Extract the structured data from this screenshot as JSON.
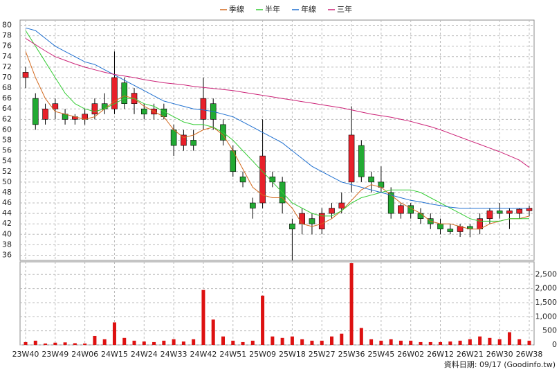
{
  "chart_data": {
    "type": "candlestick",
    "categories": [
      "23W40",
      null,
      null,
      "23W49",
      null,
      null,
      "24W06",
      null,
      null,
      "24W15",
      null,
      null,
      "24W24",
      null,
      null,
      "24W33",
      null,
      null,
      "24W42",
      null,
      null,
      "24W51",
      null,
      null,
      "25W09",
      null,
      null,
      "25W18",
      null,
      null,
      "25W27",
      null,
      null,
      "25W36",
      null,
      null,
      "25W45",
      null,
      null,
      "26W02",
      null,
      null,
      "26W12",
      null,
      null,
      "26W21",
      null,
      null,
      "26W30",
      null,
      null,
      "26W38"
    ],
    "open": [
      70,
      66,
      62,
      64,
      63,
      62,
      62,
      63,
      65,
      64,
      69,
      65,
      64,
      63,
      64,
      60,
      57,
      58,
      62,
      65,
      61,
      56,
      51,
      46,
      46,
      51,
      50,
      42,
      42,
      43,
      41,
      44,
      45,
      50,
      57,
      51,
      50,
      48,
      44,
      45.5,
      44,
      43,
      42,
      41,
      40.5,
      41.5,
      41,
      43,
      44.5,
      44,
      44,
      44.5
    ],
    "high": [
      72,
      67,
      65,
      66,
      64,
      63,
      64,
      66,
      67,
      75,
      70,
      68,
      65,
      65,
      65,
      61,
      60,
      60,
      70,
      66,
      62,
      57,
      52,
      47,
      62,
      52,
      51,
      43,
      45,
      44,
      45,
      46,
      48,
      64.5,
      58,
      52,
      53,
      49,
      46,
      46,
      45,
      44,
      43,
      42,
      42,
      42,
      44,
      45,
      46,
      45,
      45,
      45.5
    ],
    "low": [
      68,
      60,
      61,
      62,
      61,
      61,
      61,
      62,
      63,
      63,
      64,
      63,
      62,
      62,
      62,
      55,
      56,
      56,
      60,
      60,
      57,
      51,
      49,
      43,
      45,
      49,
      44,
      35,
      40,
      40,
      40,
      43,
      44,
      48,
      50,
      48,
      48,
      43,
      43,
      43,
      42,
      41,
      40,
      40,
      39.5,
      39.5,
      40,
      42,
      43,
      41,
      43,
      43.5
    ],
    "close": [
      71,
      61,
      64,
      65,
      62,
      62.5,
      63,
      65,
      64,
      70,
      65,
      67,
      63,
      64,
      62.5,
      57,
      59,
      57,
      66,
      62,
      58,
      52,
      50,
      45,
      55,
      50,
      46,
      41,
      44,
      42,
      44,
      45,
      46,
      59,
      51,
      50,
      49,
      44,
      45.5,
      44,
      43,
      42,
      41,
      40.5,
      41.5,
      41,
      43,
      44.5,
      44,
      44.5,
      44.8,
      45
    ],
    "up_color": "#e8202a",
    "down_color": "#22aa33",
    "series": [
      {
        "name": "季線",
        "color": "#d2691e",
        "values": [
          75,
          70,
          66,
          63.5,
          63,
          62.5,
          62,
          62.5,
          64,
          65.5,
          66.5,
          66,
          64.5,
          63.5,
          62.5,
          60,
          58.5,
          59,
          60,
          60.5,
          59,
          56,
          52.5,
          49,
          47.5,
          47,
          47,
          45,
          42,
          41.5,
          42,
          43,
          44.5,
          46.5,
          48.5,
          49.5,
          49,
          47.5,
          46,
          45,
          44,
          42.5,
          42,
          42,
          41.5,
          41,
          41,
          42,
          42.5,
          43,
          43,
          43.5
        ]
      },
      {
        "name": "半年",
        "color": "#33cc33",
        "values": [
          79,
          76,
          73,
          70,
          67,
          65,
          64,
          63.5,
          64,
          65,
          66,
          66,
          65,
          64.5,
          63.5,
          62.5,
          61.5,
          61,
          61,
          60.5,
          59.5,
          58,
          56,
          54,
          52,
          50,
          48,
          46,
          45,
          44,
          43.5,
          43.5,
          44.5,
          46,
          47,
          47.5,
          48,
          48.5,
          48.5,
          48.5,
          48,
          47,
          46,
          45,
          44,
          43,
          42.5,
          42.5,
          42.5,
          43,
          43,
          43
        ]
      },
      {
        "name": "年線",
        "color": "#1e6fd0",
        "values": [
          79.5,
          79,
          77.5,
          76,
          75,
          74,
          73,
          72.5,
          71.5,
          70.5,
          69.5,
          68.5,
          67.5,
          66.5,
          65.5,
          65,
          64.5,
          64,
          63.8,
          63.5,
          63,
          62.5,
          61.5,
          60.5,
          59.5,
          58.5,
          57.5,
          56,
          54.5,
          53,
          52,
          51,
          50,
          49.5,
          49,
          48.5,
          48,
          47.5,
          47,
          46.5,
          46.2,
          45.8,
          45.5,
          45.2,
          45,
          45,
          45,
          45,
          45,
          45,
          45,
          45
        ]
      },
      {
        "name": "三年",
        "color": "#cc2277",
        "values": [
          77.5,
          76.3,
          75.1,
          74,
          73.3,
          72.6,
          72,
          71.5,
          71,
          70.6,
          70.3,
          70,
          69.6,
          69.3,
          69,
          68.8,
          68.6,
          68.3,
          68.1,
          67.9,
          67.7,
          67.5,
          67.2,
          66.9,
          66.6,
          66.3,
          66,
          65.7,
          65.4,
          65.1,
          64.8,
          64.5,
          64.2,
          63.8,
          63.4,
          63,
          62.7,
          62.4,
          62,
          61.6,
          61.1,
          60.6,
          60,
          59.3,
          58.6,
          57.9,
          57.2,
          56.5,
          55.8,
          55,
          54.2,
          52.8
        ]
      }
    ],
    "ylim": [
      35,
      81
    ],
    "yticks": [
      36,
      38,
      40,
      42,
      44,
      46,
      48,
      50,
      52,
      54,
      56,
      58,
      60,
      62,
      64,
      66,
      68,
      70,
      72,
      74,
      76,
      78,
      80
    ],
    "volume": [
      100,
      150,
      50,
      80,
      90,
      60,
      50,
      320,
      200,
      800,
      250,
      150,
      120,
      100,
      150,
      200,
      120,
      200,
      1950,
      900,
      300,
      150,
      100,
      150,
      1750,
      300,
      250,
      300,
      200,
      150,
      150,
      300,
      400,
      2900,
      600,
      200,
      150,
      200,
      150,
      150,
      100,
      100,
      100,
      120,
      150,
      200,
      300,
      250,
      200,
      450,
      200,
      150
    ],
    "volume_color": "#dd1111",
    "volume_ylim": [
      0,
      2950
    ],
    "volume_yticks": [
      0,
      500,
      {
        "value": 1000,
        "label": "1,000"
      },
      {
        "value": 1500,
        "label": "1,500"
      },
      {
        "value": 2000,
        "label": "2,000"
      },
      {
        "value": 2500,
        "label": "2,500"
      }
    ],
    "grid": true,
    "footer": "資料日期: 09/17  (Goodinfo.tw)"
  }
}
